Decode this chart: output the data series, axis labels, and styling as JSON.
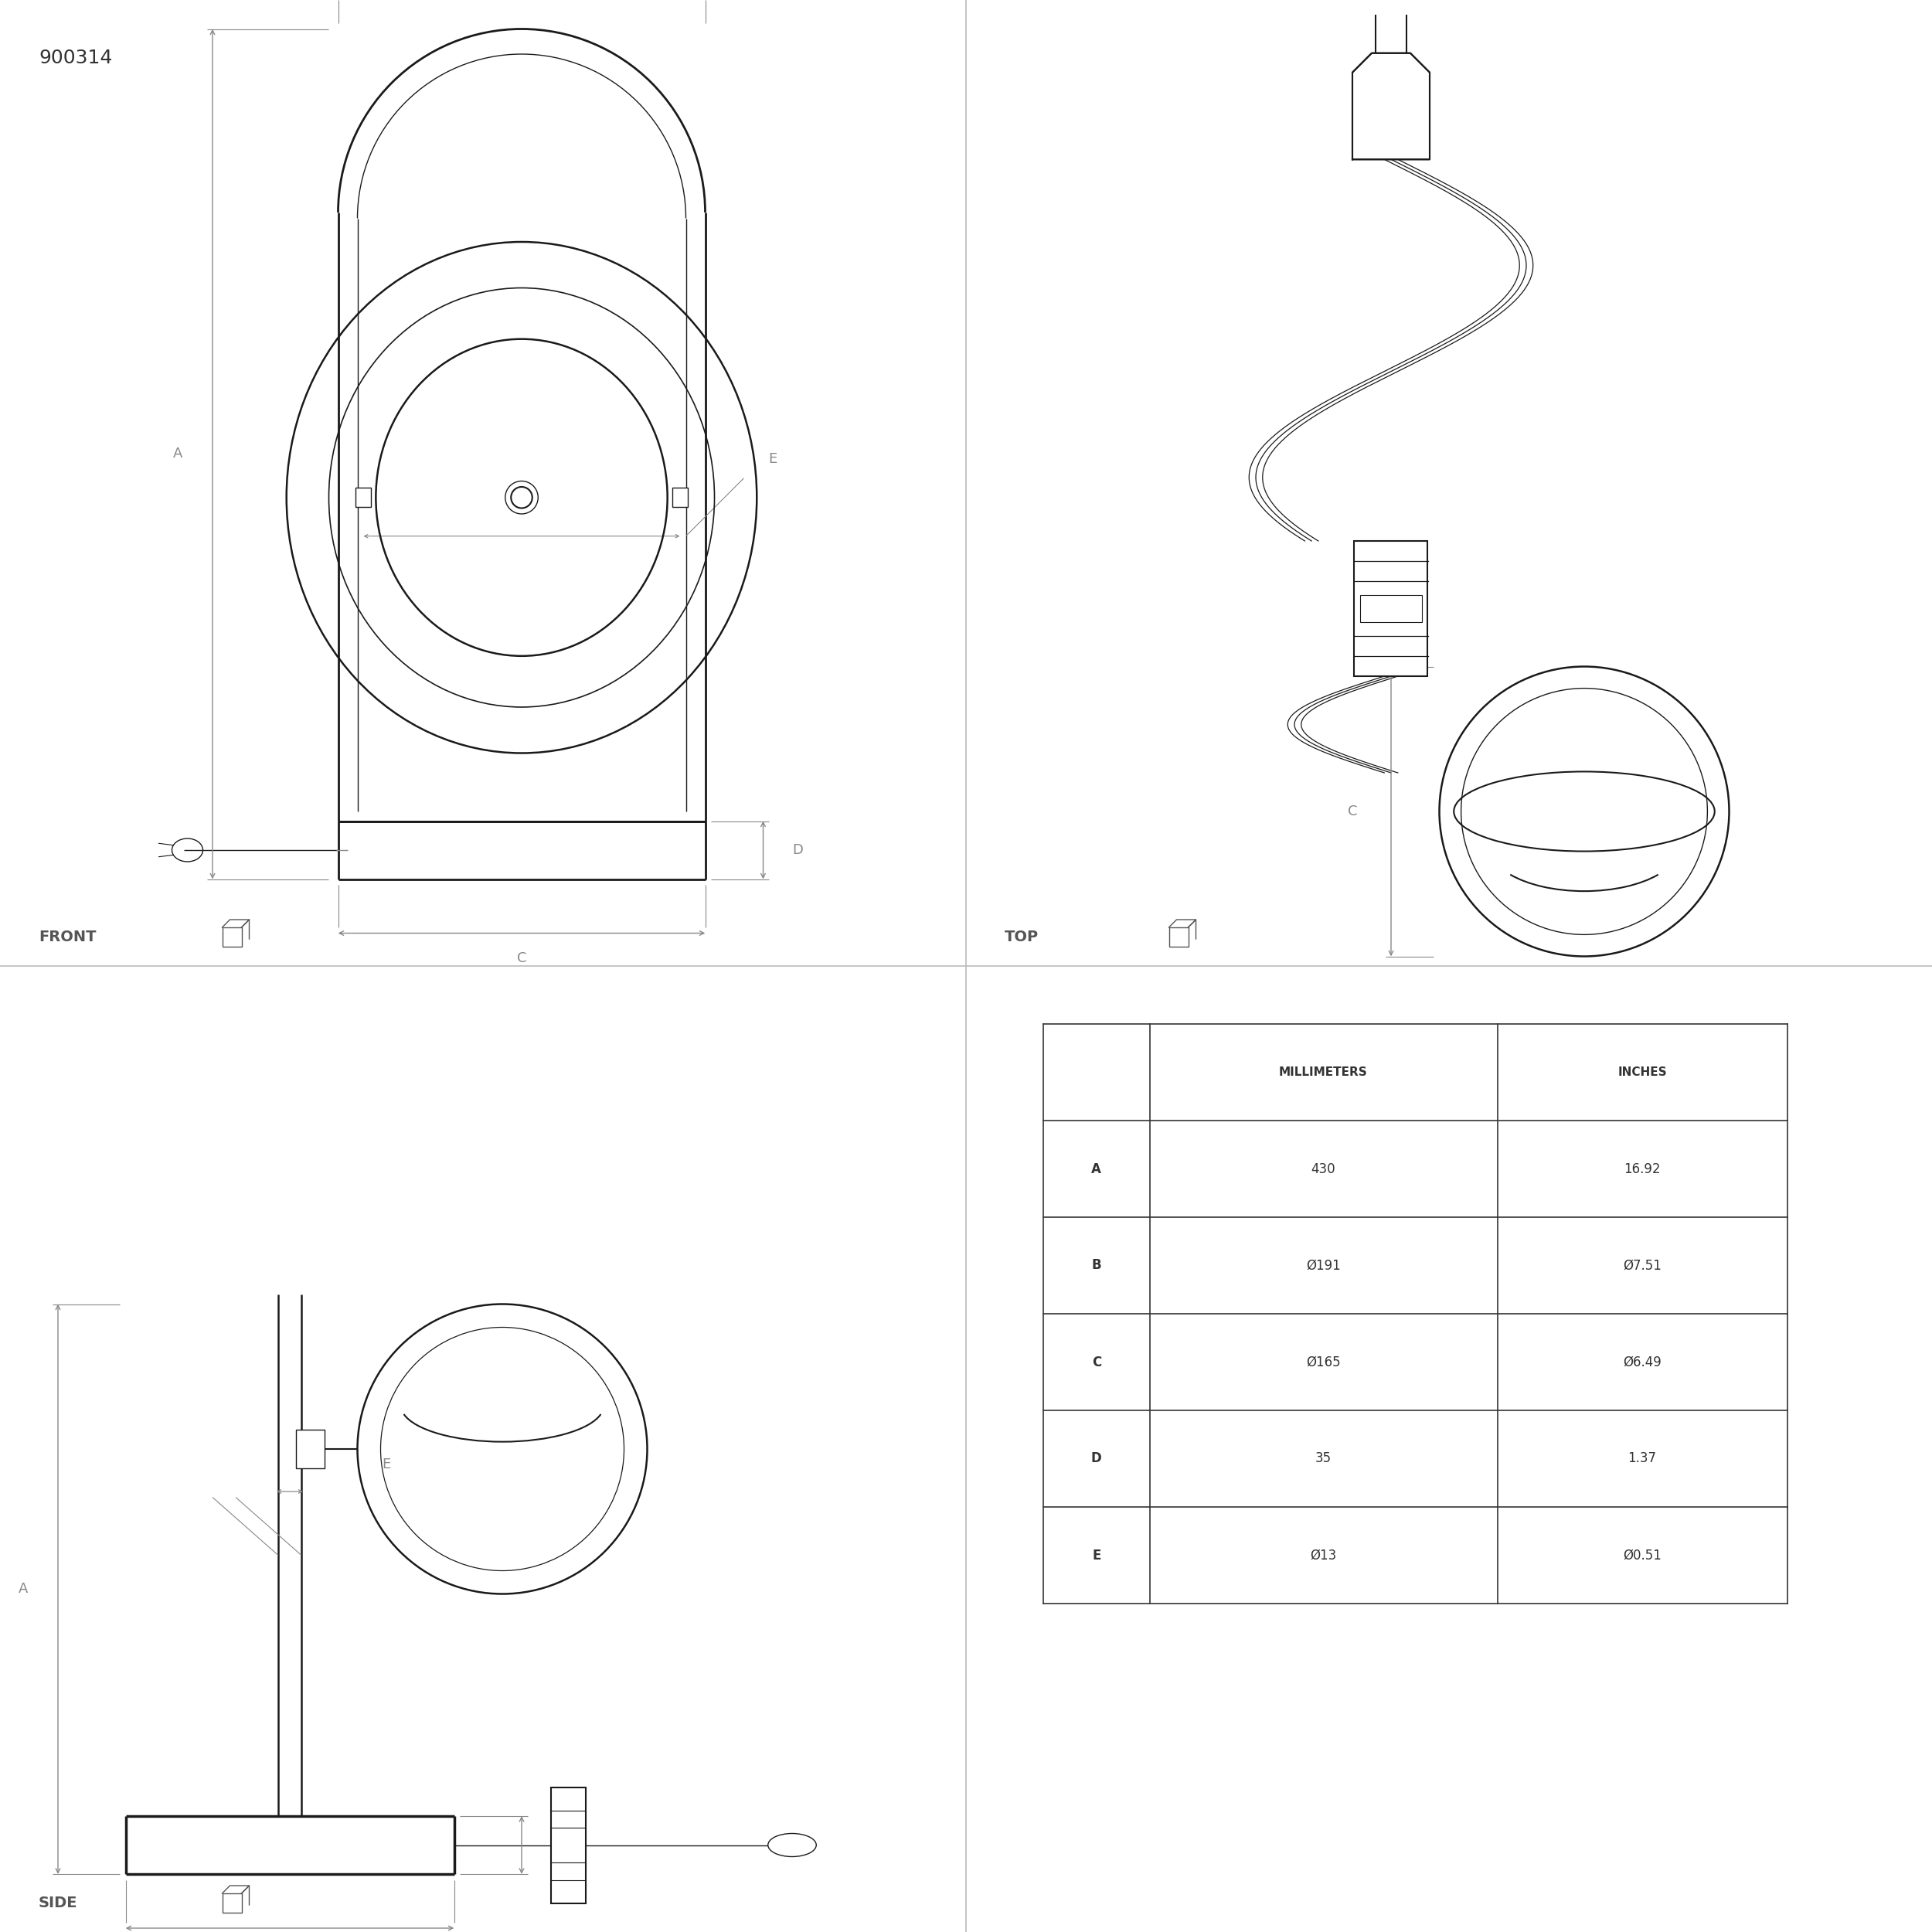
{
  "bg_color": "#ffffff",
  "line_color": "#1a1a1a",
  "dim_color": "#888888",
  "text_color": "#555555",
  "title": "900314",
  "table": {
    "headers": [
      "",
      "MILLIMETERS",
      "INCHES"
    ],
    "rows": [
      [
        "A",
        "430",
        "16.92"
      ],
      [
        "B",
        "Ø191",
        "Ø7.51"
      ],
      [
        "C",
        "Ø165",
        "Ø6.49"
      ],
      [
        "D",
        "35",
        "1.37"
      ],
      [
        "E",
        "Ø13",
        "Ø0.51"
      ]
    ]
  },
  "labels": {
    "front": "FRONT",
    "top": "TOP",
    "side": "SIDE"
  },
  "divider_color": "#bbbbbb"
}
